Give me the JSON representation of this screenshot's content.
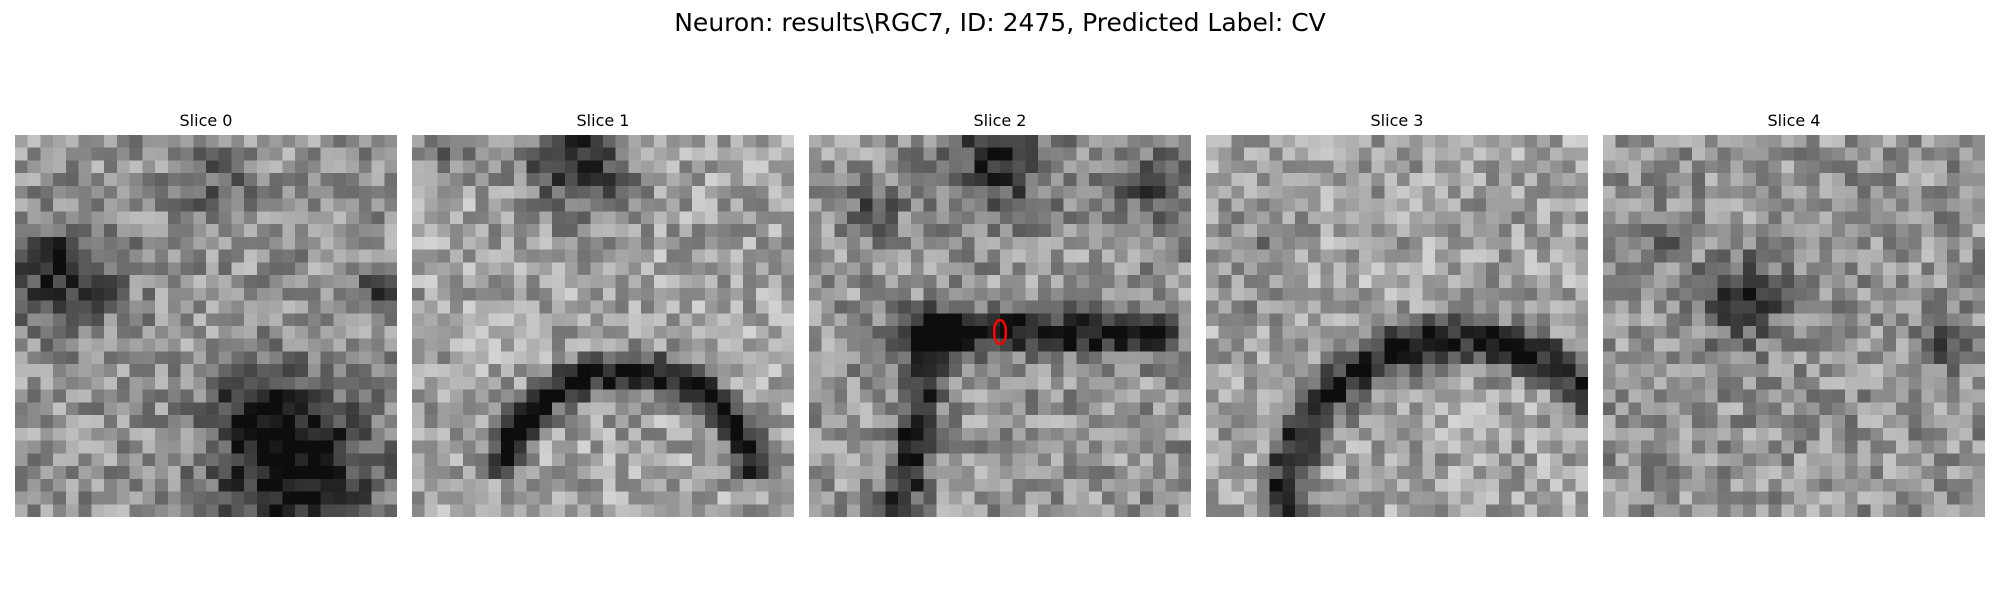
{
  "figure": {
    "title": "Neuron: results\\RGC7, ID: 2475, Predicted Label: CV"
  },
  "slices": [
    {
      "label": "Slice 0",
      "description": "grayscale EM patch; dark mottled blobs at left-center and lower-right"
    },
    {
      "label": "Slice 1",
      "description": "grayscale EM patch; dark curved membrane arching across lower half, dark blob at top"
    },
    {
      "label": "Slice 2",
      "description": "grayscale EM patch; dark horizontal membrane through center with red marker"
    },
    {
      "label": "Slice 3",
      "description": "grayscale EM patch; dark curved membrane arc across lower half"
    },
    {
      "label": "Slice 4",
      "description": "grayscale EM patch; faint dark structures near center-top"
    }
  ],
  "marker": {
    "color": "#ff0000",
    "slice_index": 2
  }
}
